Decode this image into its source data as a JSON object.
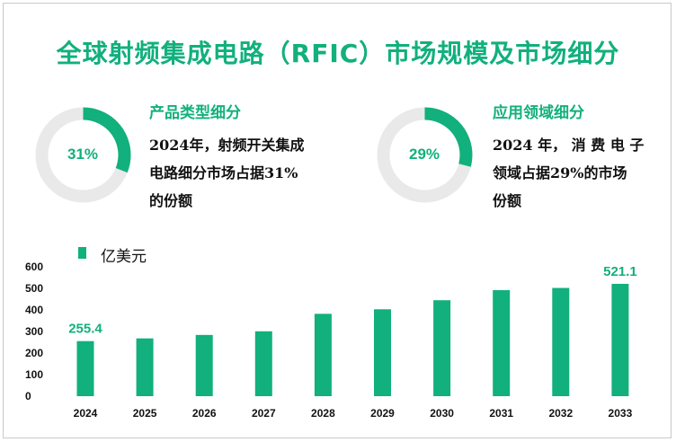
{
  "title": "全球射频集成电路（RFIC）市场规模及市场细分",
  "left_segment": {
    "title": "产品类型细分",
    "percent_label": "31%",
    "percent_value": 31,
    "desc_lines": [
      "2024年，射频开关集成",
      "电路细分市场占据31%",
      "的份额"
    ]
  },
  "right_segment": {
    "title": "应用领域细分",
    "percent_label": "29%",
    "percent_value": 29,
    "desc_lines": [
      "2024 年， 消 费 电 子",
      "领域占据29%的市场",
      "份额"
    ]
  },
  "colors": {
    "accent": "#11b07c",
    "ring_bg": "#e9e9e9"
  },
  "chart_data": {
    "type": "bar",
    "categories": [
      "2024",
      "2025",
      "2026",
      "2027",
      "2028",
      "2029",
      "2030",
      "2031",
      "2032",
      "2033"
    ],
    "series": [
      {
        "name": "亿美元",
        "values": [
          255.4,
          268,
          284,
          301,
          382,
          403,
          445,
          492,
          502,
          521.1
        ]
      }
    ],
    "data_labels": [
      {
        "category": "2024",
        "text": "255.4"
      },
      {
        "category": "2033",
        "text": "521.1"
      }
    ],
    "ylim": [
      0,
      600
    ],
    "yticks": [
      "0",
      "100",
      "200",
      "300",
      "400",
      "500",
      "600"
    ],
    "grid": false,
    "legend": "top-left"
  }
}
